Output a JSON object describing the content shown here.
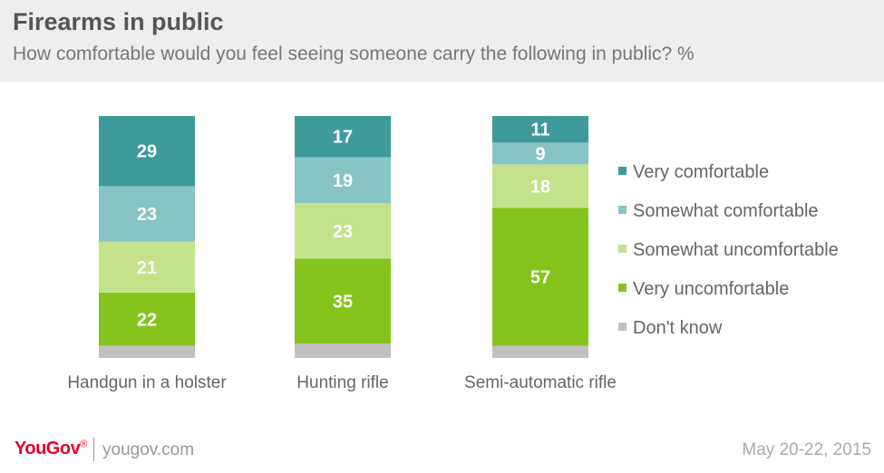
{
  "header": {
    "title": "Firearms in public",
    "subtitle": "How comfortable would you feel seeing someone carry the following in public? %"
  },
  "footer": {
    "brand": "YouGov",
    "site": "yougov.com",
    "date": "May 20-22, 2015"
  },
  "chart_data": {
    "type": "bar",
    "stacked": true,
    "categories": [
      "Handgun in a holster",
      "Hunting rifle",
      "Semi-automatic rifle"
    ],
    "series": [
      {
        "name": "Don't know",
        "values": [
          5,
          6,
          5
        ],
        "color": "#c0c0c0",
        "show_labels": false
      },
      {
        "name": "Very uncomfortable",
        "values": [
          22,
          35,
          57
        ],
        "color": "#84c41c",
        "show_labels": true
      },
      {
        "name": "Somewhat uncomfortable",
        "values": [
          21,
          23,
          18
        ],
        "color": "#c4e28a",
        "show_labels": true
      },
      {
        "name": "Somewhat comfortable",
        "values": [
          23,
          19,
          9
        ],
        "color": "#87c4c4",
        "show_labels": true
      },
      {
        "name": "Very comfortable",
        "values": [
          29,
          17,
          11
        ],
        "color": "#3f9a9a",
        "show_labels": true
      }
    ],
    "legend": [
      {
        "name": "Very comfortable",
        "color": "#3f9a9a"
      },
      {
        "name": "Somewhat comfortable",
        "color": "#87c4c4"
      },
      {
        "name": "Somewhat uncomfortable",
        "color": "#c4e28a"
      },
      {
        "name": "Very uncomfortable",
        "color": "#84c41c"
      },
      {
        "name": "Don't know",
        "color": "#c0c0c0"
      }
    ],
    "legend_position": "right",
    "grid": false
  }
}
